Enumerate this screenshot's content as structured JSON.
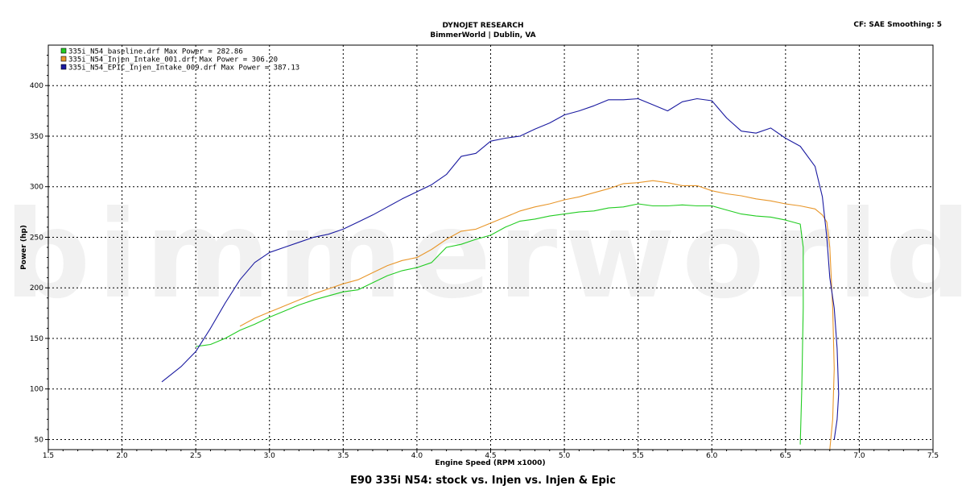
{
  "header": {
    "line1": "DYNOJET RESEARCH",
    "line2": "BimmerWorld | Dublin, VA",
    "right_info": "CF: SAE  Smoothing: 5"
  },
  "watermark": "bimmerworld",
  "caption": "E90 335i N54: stock vs. Injen vs. Injen & Epic",
  "chart_data": {
    "type": "line",
    "xlabel": "Engine Speed (RPM x1000)",
    "ylabel": "Power (hp)",
    "xlim": [
      1.5,
      7.5
    ],
    "ylim": [
      40,
      440
    ],
    "xticks": [
      "1.5",
      "2.0",
      "2.5",
      "3.0",
      "3.5",
      "4.0",
      "4.5",
      "5.0",
      "5.5",
      "6.0",
      "6.5",
      "7.0",
      "7.5"
    ],
    "yticks": [
      "50",
      "100",
      "150",
      "200",
      "250",
      "300",
      "350",
      "400"
    ],
    "grid": true,
    "legend_position": "top-left",
    "series": [
      {
        "name": "335i_N54_baseline.drf Max Power = 282.86",
        "color": "#22cc22",
        "x": [
          2.5,
          2.6,
          2.7,
          2.8,
          2.9,
          3.0,
          3.1,
          3.2,
          3.3,
          3.4,
          3.5,
          3.6,
          3.7,
          3.8,
          3.9,
          4.0,
          4.1,
          4.2,
          4.3,
          4.4,
          4.5,
          4.6,
          4.7,
          4.8,
          4.9,
          5.0,
          5.1,
          5.2,
          5.3,
          5.4,
          5.5,
          5.6,
          5.7,
          5.8,
          5.9,
          6.0,
          6.1,
          6.2,
          6.3,
          6.4,
          6.5,
          6.55,
          6.6,
          6.62,
          6.62,
          6.61,
          6.6
        ],
        "y": [
          142,
          144,
          150,
          158,
          164,
          171,
          177,
          183,
          188,
          192,
          196,
          198,
          205,
          212,
          217,
          220,
          225,
          240,
          243,
          248,
          252,
          260,
          266,
          268,
          271,
          273,
          275,
          276,
          279,
          280,
          283,
          281,
          281,
          282,
          281,
          281,
          277,
          273,
          271,
          270,
          267,
          265,
          263,
          240,
          180,
          100,
          45
        ]
      },
      {
        "name": "335i_N54_Injen_Intake_001.drf Max Power = 306.20",
        "color": "#e8962a",
        "x": [
          2.8,
          2.9,
          3.0,
          3.1,
          3.2,
          3.3,
          3.4,
          3.5,
          3.6,
          3.7,
          3.8,
          3.9,
          4.0,
          4.1,
          4.2,
          4.3,
          4.4,
          4.5,
          4.6,
          4.7,
          4.8,
          4.9,
          5.0,
          5.1,
          5.2,
          5.3,
          5.4,
          5.5,
          5.6,
          5.7,
          5.8,
          5.9,
          6.0,
          6.1,
          6.2,
          6.3,
          6.4,
          6.5,
          6.6,
          6.7,
          6.75,
          6.78,
          6.8,
          6.82,
          6.83,
          6.82,
          6.8
        ],
        "y": [
          162,
          170,
          176,
          182,
          188,
          194,
          199,
          204,
          208,
          215,
          222,
          227,
          230,
          238,
          248,
          256,
          258,
          264,
          270,
          276,
          280,
          283,
          287,
          290,
          294,
          298,
          303,
          304,
          306,
          304,
          301,
          301,
          296,
          293,
          291,
          288,
          286,
          283,
          281,
          278,
          272,
          265,
          240,
          180,
          120,
          70,
          40
        ]
      },
      {
        "name": "335i_N54_EPIC_Injen_Intake_009.drf Max Power = 387.13",
        "color": "#1a1aa0",
        "x": [
          2.27,
          2.4,
          2.5,
          2.6,
          2.7,
          2.8,
          2.9,
          3.0,
          3.1,
          3.2,
          3.3,
          3.4,
          3.5,
          3.6,
          3.7,
          3.8,
          3.9,
          4.0,
          4.1,
          4.2,
          4.3,
          4.4,
          4.5,
          4.6,
          4.7,
          4.8,
          4.9,
          5.0,
          5.1,
          5.2,
          5.3,
          5.4,
          5.5,
          5.6,
          5.7,
          5.8,
          5.9,
          6.0,
          6.1,
          6.2,
          6.3,
          6.4,
          6.5,
          6.6,
          6.7,
          6.75,
          6.78,
          6.8,
          6.83,
          6.85,
          6.86,
          6.85,
          6.83
        ],
        "y": [
          107,
          122,
          137,
          160,
          185,
          208,
          225,
          235,
          240,
          245,
          250,
          253,
          258,
          265,
          272,
          280,
          288,
          295,
          302,
          312,
          330,
          333,
          345,
          348,
          350,
          357,
          363,
          371,
          375,
          380,
          386,
          386,
          387,
          381,
          375,
          384,
          387,
          385,
          368,
          355,
          353,
          358,
          348,
          340,
          320,
          290,
          250,
          210,
          180,
          140,
          95,
          70,
          50
        ]
      }
    ]
  }
}
